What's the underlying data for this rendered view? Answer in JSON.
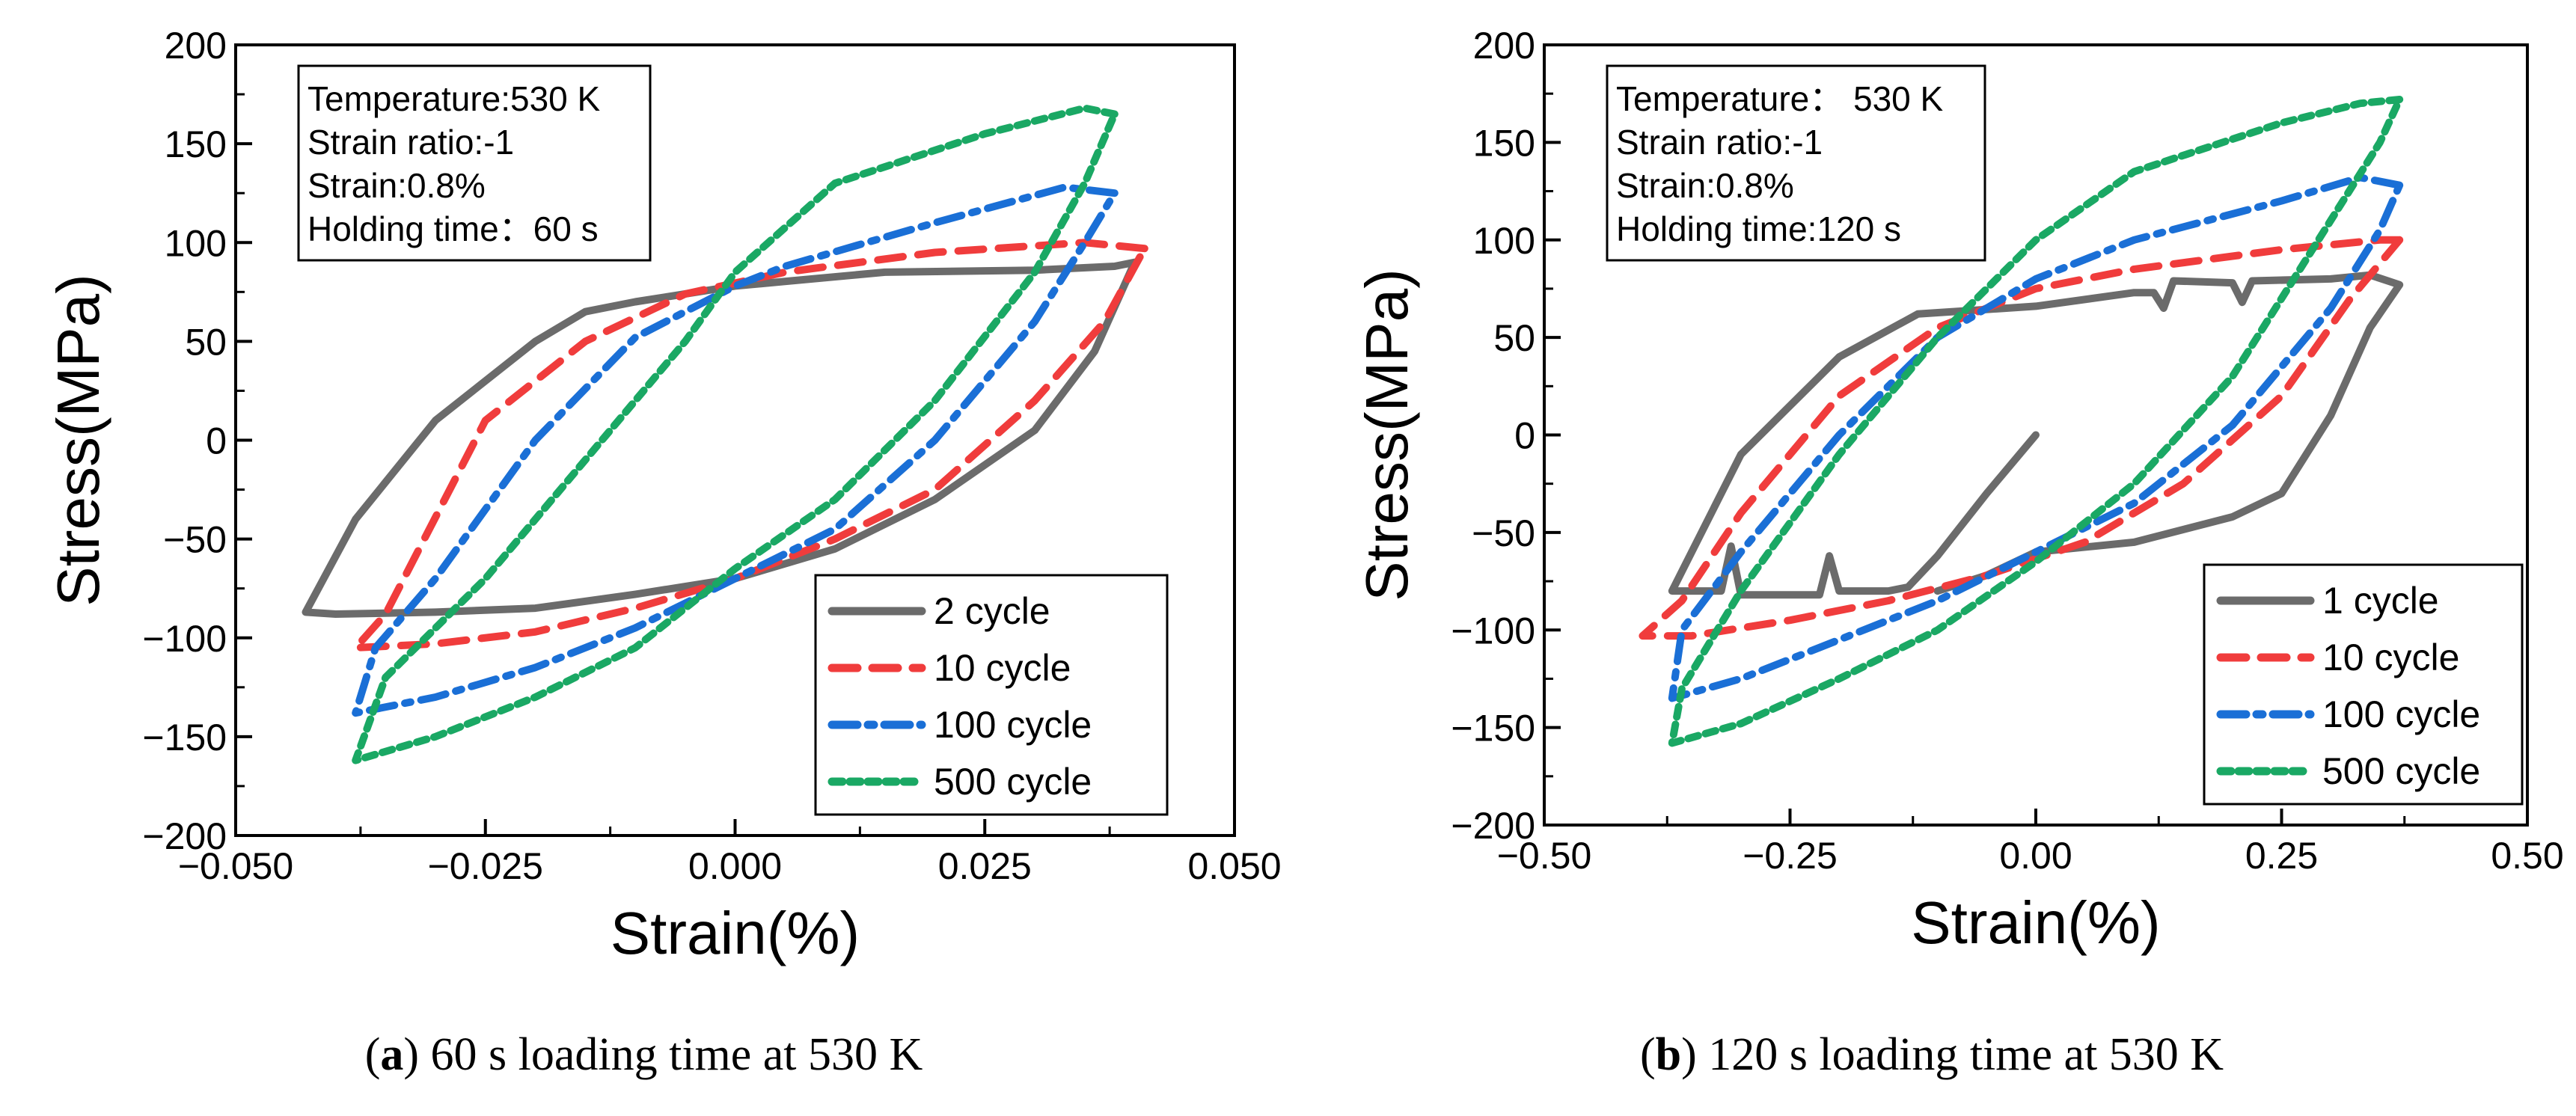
{
  "colors": {
    "grey": "#6b6b6b",
    "red": "#f03c3c",
    "blue": "#1a6fd6",
    "green": "#1aa864"
  },
  "chart_data": [
    {
      "id": "a",
      "type": "line",
      "xlabel": "Strain(%)",
      "ylabel": "Stress(MPa)",
      "xlim": [
        -0.05,
        0.05
      ],
      "ylim": [
        -200,
        200
      ],
      "xticks": [
        -0.05,
        -0.025,
        0.0,
        0.025,
        0.05
      ],
      "xtick_labels": [
        "−0.050",
        "−0.025",
        "0.000",
        "0.025",
        "0.050"
      ],
      "yticks": [
        -200,
        -150,
        -100,
        -50,
        0,
        50,
        100,
        150,
        200
      ],
      "ytick_labels": [
        "−200",
        "−150",
        "−100",
        "−50",
        "0",
        "50",
        "100",
        "150",
        "200"
      ],
      "caption_letter": "a",
      "caption_text": "60 s loading time at 530 K",
      "annotation": [
        "Temperature:530 K",
        "Strain ratio:-1",
        "Strain:0.8%",
        "Holding time：60 s"
      ],
      "legend_position": "bottom-right",
      "series": [
        {
          "name": "2 cycle",
          "color": "grey",
          "style": "solid",
          "x": [
            0.04,
            0.038,
            0.03,
            0.015,
            0.0,
            -0.01,
            -0.015,
            -0.02,
            -0.03,
            -0.038,
            -0.043,
            -0.04,
            -0.03,
            -0.02,
            -0.01,
            0.0,
            0.01,
            0.02,
            0.03,
            0.036,
            0.04
          ],
          "y": [
            90,
            88,
            86,
            85,
            78,
            70,
            65,
            50,
            10,
            -40,
            -87,
            -88,
            -87,
            -85,
            -78,
            -70,
            -55,
            -30,
            5,
            45,
            90
          ]
        },
        {
          "name": "10 cycle",
          "color": "red",
          "style": "dash",
          "x": [
            0.041,
            0.035,
            0.02,
            0.005,
            -0.005,
            -0.015,
            -0.025,
            -0.035,
            -0.038,
            -0.03,
            -0.02,
            -0.01,
            0.0,
            0.01,
            0.02,
            0.03,
            0.037,
            0.041
          ],
          "y": [
            97,
            100,
            95,
            85,
            74,
            50,
            10,
            -88,
            -105,
            -103,
            -97,
            -85,
            -70,
            -50,
            -25,
            20,
            60,
            97
          ]
        },
        {
          "name": "100 cycle",
          "color": "blue",
          "style": "dashdot",
          "x": [
            0.038,
            0.033,
            0.02,
            0.005,
            0.0,
            -0.01,
            -0.02,
            -0.03,
            -0.036,
            -0.038,
            -0.03,
            -0.02,
            -0.01,
            0.0,
            0.01,
            0.02,
            0.03,
            0.035,
            0.038
          ],
          "y": [
            125,
            128,
            110,
            88,
            78,
            52,
            0,
            -70,
            -105,
            -138,
            -130,
            -115,
            -95,
            -70,
            -45,
            0,
            60,
            100,
            125
          ]
        },
        {
          "name": "500 cycle",
          "color": "green",
          "style": "dot",
          "x": [
            0.038,
            0.035,
            0.025,
            0.01,
            0.0,
            -0.005,
            -0.015,
            -0.025,
            -0.035,
            -0.038,
            -0.03,
            -0.02,
            -0.01,
            0.0,
            0.01,
            0.02,
            0.03,
            0.035,
            0.038
          ],
          "y": [
            165,
            168,
            155,
            130,
            85,
            50,
            -10,
            -70,
            -120,
            -162,
            -150,
            -130,
            -105,
            -65,
            -30,
            20,
            85,
            130,
            165
          ]
        }
      ]
    },
    {
      "id": "b",
      "type": "line",
      "xlabel": "Strain(%)",
      "ylabel": "Stress(MPa)",
      "xlim": [
        -0.5,
        0.5
      ],
      "ylim": [
        -200,
        200
      ],
      "xticks": [
        -0.5,
        -0.25,
        0.0,
        0.25,
        0.5
      ],
      "xtick_labels": [
        "−0.50",
        "−0.25",
        "0.00",
        "0.25",
        "0.50"
      ],
      "yticks": [
        -200,
        -150,
        -100,
        -50,
        0,
        50,
        100,
        150,
        200
      ],
      "ytick_labels": [
        "−200",
        "−150",
        "−100",
        "−50",
        "0",
        "50",
        "100",
        "150",
        "200"
      ],
      "caption_letter": "b",
      "caption_text": "120 s loading time at 530 K",
      "annotation": [
        "Temperature： 530 K",
        "Strain ratio:-1",
        "Strain:0.8%",
        "Holding time:120 s"
      ],
      "legend_position": "bottom-right",
      "series": [
        {
          "name": "1 cycle",
          "color": "grey",
          "style": "solid",
          "x": [
            0.0,
            -0.05,
            -0.1,
            -0.13,
            -0.15,
            -0.2,
            -0.21,
            -0.22,
            -0.3,
            -0.31,
            -0.32,
            -0.37,
            -0.3,
            -0.2,
            -0.12,
            0.0,
            0.1,
            0.12,
            0.13,
            0.14,
            0.2,
            0.21,
            0.22,
            0.3,
            0.34,
            0.37,
            0.34,
            0.3,
            0.25,
            0.2,
            0.1,
            0.0,
            -0.05,
            -0.1
          ],
          "y": [
            0,
            -30,
            -62,
            -78,
            -80,
            -80,
            -62,
            -82,
            -82,
            -57,
            -80,
            -80,
            -10,
            40,
            62,
            66,
            73,
            73,
            65,
            79,
            78,
            68,
            79,
            80,
            82,
            77,
            55,
            10,
            -30,
            -42,
            -55,
            -60,
            -72,
            -80
          ]
        },
        {
          "name": "10 cycle",
          "color": "red",
          "style": "dash",
          "x": [
            0.37,
            0.35,
            0.25,
            0.1,
            0.0,
            -0.1,
            -0.2,
            -0.3,
            -0.36,
            -0.4,
            -0.35,
            -0.25,
            -0.15,
            -0.05,
            0.05,
            0.15,
            0.25,
            0.32,
            0.37
          ],
          "y": [
            100,
            100,
            95,
            85,
            75,
            55,
            20,
            -40,
            -85,
            -103,
            -103,
            -95,
            -85,
            -72,
            -55,
            -25,
            20,
            70,
            100
          ]
        },
        {
          "name": "100 cycle",
          "color": "blue",
          "style": "dashdot",
          "x": [
            0.37,
            0.33,
            0.25,
            0.1,
            0.0,
            -0.1,
            -0.2,
            -0.3,
            -0.36,
            -0.37,
            -0.3,
            -0.2,
            -0.1,
            0.0,
            0.1,
            0.2,
            0.3,
            0.35,
            0.37
          ],
          "y": [
            128,
            132,
            120,
            100,
            80,
            50,
            0,
            -60,
            -100,
            -135,
            -125,
            -105,
            -85,
            -60,
            -35,
            5,
            65,
            105,
            128
          ]
        },
        {
          "name": "500 cycle",
          "color": "green",
          "style": "dot",
          "x": [
            0.37,
            0.33,
            0.25,
            0.1,
            0.0,
            -0.1,
            -0.2,
            -0.3,
            -0.36,
            -0.37,
            -0.3,
            -0.2,
            -0.1,
            0.0,
            0.1,
            0.2,
            0.3,
            0.35,
            0.37
          ],
          "y": [
            172,
            170,
            160,
            135,
            100,
            50,
            -10,
            -80,
            -130,
            -158,
            -148,
            -125,
            -100,
            -65,
            -25,
            30,
            110,
            150,
            172
          ]
        }
      ]
    }
  ]
}
